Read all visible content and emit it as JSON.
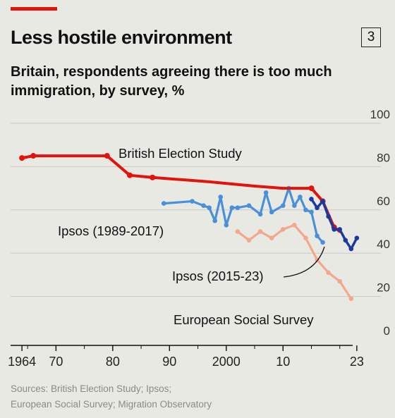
{
  "header": {
    "title": "Less hostile environment",
    "badge": "3",
    "subtitle": "Britain, respondents agreeing there is too much immigration, by survey, %"
  },
  "footer": {
    "source_line1": "Sources: British Election Study; Ipsos;",
    "source_line2": "European Social Survey; Migration Observatory"
  },
  "colors": {
    "background": "#e9e9e4",
    "accent": "#e3120b",
    "bes": "#e3120b",
    "ipsos_old": "#4a90d9",
    "ipsos_new": "#1a3aa0",
    "ess": "#f3a78d",
    "grid": "#c9c9c5",
    "axis": "#111111"
  },
  "chart_data": {
    "type": "line",
    "title": "Less hostile environment",
    "xlabel": "",
    "ylabel": "",
    "xlim": [
      1962,
      2026
    ],
    "ylim": [
      0,
      100
    ],
    "grid": true,
    "legend": "labels on chart",
    "y_ticks": [
      0,
      20,
      40,
      60,
      80,
      100
    ],
    "x_ticks": [
      {
        "value": 1964,
        "label": "1964"
      },
      {
        "value": 1970,
        "label": "70"
      },
      {
        "value": 1980,
        "label": "80"
      },
      {
        "value": 1990,
        "label": "90"
      },
      {
        "value": 2000,
        "label": "2000"
      },
      {
        "value": 2010,
        "label": "10"
      },
      {
        "value": 2023,
        "label": "23"
      }
    ],
    "series": [
      {
        "name": "British Election Study",
        "color": "#e3120b",
        "x": [
          1964,
          1966,
          1970,
          1974,
          1979,
          1983,
          1987,
          1992,
          1997,
          2001,
          2005,
          2010,
          2015,
          2017,
          2019,
          2020
        ],
        "y": [
          84,
          85,
          85,
          85,
          85,
          76,
          75,
          74,
          73,
          72,
          71,
          70,
          70,
          64,
          52,
          50
        ],
        "markers": [
          true,
          true,
          false,
          false,
          true,
          true,
          true,
          false,
          false,
          false,
          false,
          false,
          true,
          true,
          true,
          false
        ]
      },
      {
        "name": "Ipsos (1989-2017)",
        "color": "#4a90d9",
        "x": [
          1989,
          1994,
          1996,
          1997,
          1998,
          1999,
          2000,
          2001,
          2002,
          2004,
          2006,
          2007,
          2008,
          2010,
          2011,
          2012,
          2013,
          2014,
          2015,
          2016,
          2017
        ],
        "y": [
          63,
          64,
          62,
          61,
          55,
          66,
          53,
          61,
          61,
          62,
          58,
          68,
          59,
          62,
          70,
          62,
          66,
          60,
          59,
          48,
          45
        ]
      },
      {
        "name": "Ipsos (2015-23)",
        "color": "#1a3aa0",
        "x": [
          2015,
          2016,
          2017,
          2018,
          2019,
          2020,
          2021,
          2022,
          2023
        ],
        "y": [
          65,
          61,
          64,
          57,
          51,
          51,
          46,
          42,
          47
        ]
      },
      {
        "name": "European Social Survey",
        "color": "#f3a78d",
        "x": [
          2002,
          2004,
          2006,
          2008,
          2010,
          2012,
          2014,
          2016,
          2018,
          2020,
          2022
        ],
        "y": [
          50,
          46,
          50,
          47,
          51,
          53,
          47,
          37,
          31,
          27,
          19
        ]
      }
    ],
    "annotations": [
      {
        "text": "British Election Study"
      },
      {
        "text": "Ipsos (1989-2017)"
      },
      {
        "text": "Ipsos (2015-23)"
      },
      {
        "text": "European Social Survey"
      }
    ]
  }
}
